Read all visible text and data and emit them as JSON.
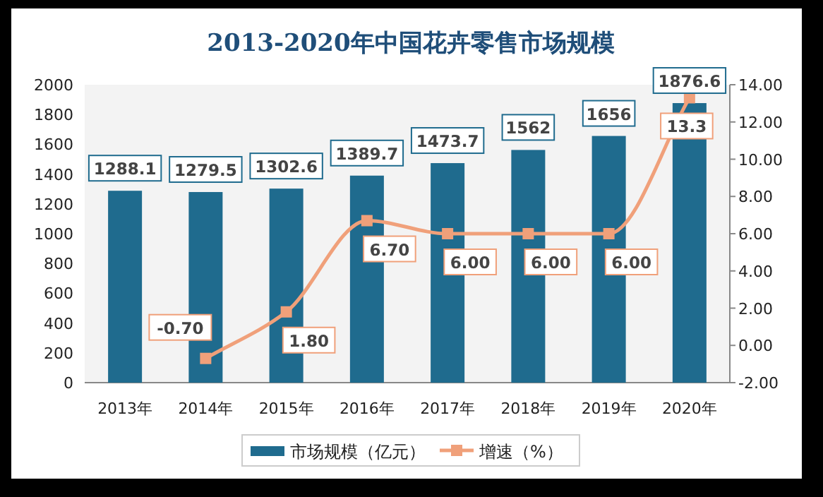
{
  "chart_data": {
    "type": "bar",
    "title": "2013-2020年中国花卉零售市场规模",
    "categories": [
      "2013年",
      "2014年",
      "2015年",
      "2016年",
      "2017年",
      "2018年",
      "2019年",
      "2020年"
    ],
    "series": [
      {
        "name": "市场规模（亿元）",
        "color": "#1f6b8e",
        "values": [
          1288.1,
          1279.5,
          1302.6,
          1389.7,
          1473.7,
          1562,
          1656,
          1876.6
        ],
        "value_labels": [
          "1288.1",
          "1279.5",
          "1302.6",
          "1389.7",
          "1473.7",
          "1562",
          "1656",
          "1876.6"
        ]
      },
      {
        "name": "增速（%）",
        "type": "line",
        "axis": "y2",
        "color": "#f0a07a",
        "marker": "square",
        "values": [
          null,
          -0.7,
          1.8,
          6.7,
          6.0,
          6.0,
          6.0,
          13.3
        ],
        "value_labels": [
          null,
          "-0.70",
          "1.80",
          "6.70",
          "6.00",
          "6.00",
          "6.00",
          "13.3"
        ]
      }
    ],
    "ylim": [
      0,
      2000
    ],
    "yticks": [
      0,
      200,
      400,
      600,
      800,
      1000,
      1200,
      1400,
      1600,
      1800,
      2000
    ],
    "y2lim": [
      -2,
      14
    ],
    "y2ticks": [
      {
        "value": -2,
        "label": "-2.00"
      },
      {
        "value": 0,
        "label": "0.00"
      },
      {
        "value": 2,
        "label": "2.00"
      },
      {
        "value": 4,
        "label": "4.00"
      },
      {
        "value": 6,
        "label": "6.00"
      },
      {
        "value": 8,
        "label": "8.00"
      },
      {
        "value": 10,
        "label": "10.00"
      },
      {
        "value": 12,
        "label": "12.00"
      },
      {
        "value": 14,
        "label": "14.00"
      }
    ],
    "grid": false,
    "legend": "bottom"
  }
}
